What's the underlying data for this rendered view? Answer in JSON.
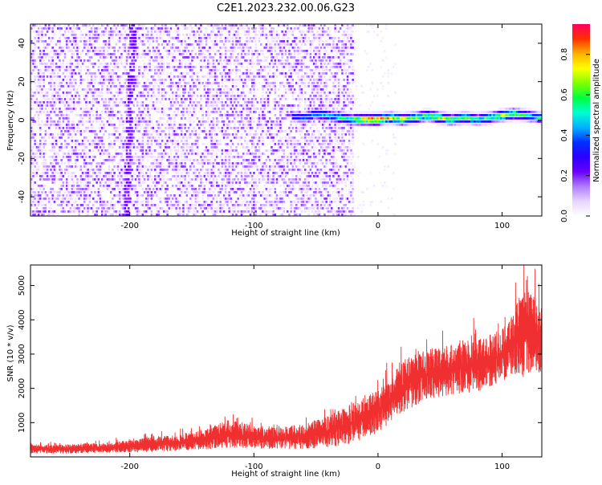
{
  "title": "C2E1.2023.232.00.06.G23",
  "chart_data": [
    {
      "type": "heatmap",
      "xlabel": "Height of straight line (km)",
      "ylabel": "Frequency (Hz)",
      "xlim": [
        -280,
        132
      ],
      "ylim": [
        -50,
        50
      ],
      "xticks": [
        -200,
        -100,
        0,
        100
      ],
      "yticks": [
        -40,
        -20,
        0,
        20,
        40
      ],
      "colorbar": {
        "label": "Normalized spectral amplitude",
        "range": [
          0.0,
          0.95
        ],
        "ticks": [
          0.0,
          0.2,
          0.4,
          0.6,
          0.8
        ],
        "colormap": [
          "#ffffff",
          "#e8d4ff",
          "#b07cff",
          "#6a00ff",
          "#2a00ff",
          "#0030ff",
          "#00b0ff",
          "#00ffd0",
          "#00ff40",
          "#80ff00",
          "#ffff00",
          "#ffb000",
          "#ff3000",
          "#ff0060"
        ]
      },
      "signal_trace": {
        "x": [
          -70,
          -60,
          -50,
          -40,
          -30,
          -20,
          -10,
          0,
          10,
          20,
          30,
          40,
          50,
          60,
          70,
          80,
          90,
          100,
          110,
          120,
          130
        ],
        "y": [
          2,
          1,
          3,
          2,
          1,
          0,
          0,
          0,
          1,
          0,
          1,
          2,
          1,
          0,
          1,
          0,
          1,
          2,
          3,
          2,
          1
        ],
        "amplitude": [
          0.35,
          0.4,
          0.45,
          0.5,
          0.55,
          0.6,
          0.8,
          0.85,
          0.75,
          0.7,
          0.65,
          0.6,
          0.7,
          0.6,
          0.65,
          0.55,
          0.6,
          0.7,
          0.65,
          0.55,
          0.5
        ]
      },
      "noise_region": {
        "x_start": -280,
        "x_end": -20,
        "level": 0.2
      },
      "grid": false
    },
    {
      "type": "line",
      "xlabel": "Height of straight line (km)",
      "ylabel": "SNR (10 * v/v)",
      "xlim": [
        -280,
        132
      ],
      "ylim": [
        0,
        5600
      ],
      "xticks": [
        -200,
        -100,
        0,
        100
      ],
      "yticks": [
        1000,
        2000,
        3000,
        4000,
        5000
      ],
      "series": [
        {
          "color": "#f03030",
          "x": [
            -280,
            -260,
            -240,
            -220,
            -200,
            -180,
            -160,
            -140,
            -120,
            -100,
            -80,
            -60,
            -40,
            -20,
            0,
            10,
            20,
            40,
            60,
            80,
            100,
            110,
            120,
            132
          ],
          "lower": [
            100,
            100,
            100,
            120,
            130,
            150,
            180,
            220,
            260,
            250,
            230,
            220,
            280,
            400,
            700,
            1000,
            1300,
            1700,
            1800,
            1900,
            2200,
            2400,
            2300,
            2500
          ],
          "upper": [
            400,
            380,
            420,
            450,
            520,
            650,
            700,
            850,
            1200,
            1000,
            950,
            1050,
            1300,
            1700,
            2100,
            2500,
            3000,
            3300,
            3500,
            3600,
            3900,
            4600,
            5200,
            4700
          ]
        }
      ],
      "grid": false
    }
  ]
}
